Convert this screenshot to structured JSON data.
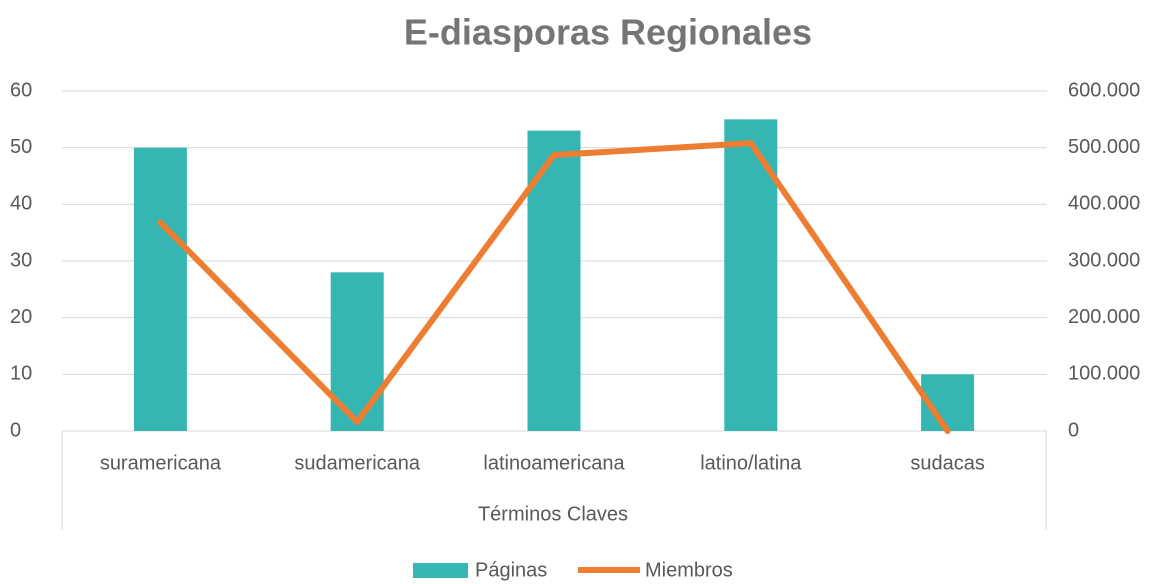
{
  "chart_data": {
    "type": "bar",
    "title": "E-diasporas Regionales",
    "x_label": "Términos Claves",
    "categories": [
      "suramericana",
      "sudamericana",
      "latinoamericana",
      "latino/latina",
      "sudacas"
    ],
    "series": [
      {
        "name": "Páginas",
        "type": "bar",
        "color": "#35b6b2",
        "values": [
          50,
          28,
          53,
          55,
          10
        ]
      },
      {
        "name": "Miembros",
        "type": "line",
        "axis": "y2",
        "color": "#ed7d31",
        "values": [
          368000,
          16000,
          487000,
          508000,
          0
        ]
      }
    ],
    "ylim": [
      0,
      60
    ],
    "yticks": [
      0,
      10,
      20,
      30,
      40,
      50,
      60
    ],
    "y2lim": [
      0,
      600000
    ],
    "y2ticks": [
      0,
      {
        "value": 100000,
        "label": "100.000"
      },
      {
        "value": 200000,
        "label": "200.000"
      },
      {
        "value": 300000,
        "label": "300.000"
      },
      {
        "value": 400000,
        "label": "400.000"
      },
      {
        "value": 500000,
        "label": "500.000"
      },
      {
        "value": 600000,
        "label": "600.000"
      }
    ],
    "grid": true,
    "legend": "bottom"
  }
}
